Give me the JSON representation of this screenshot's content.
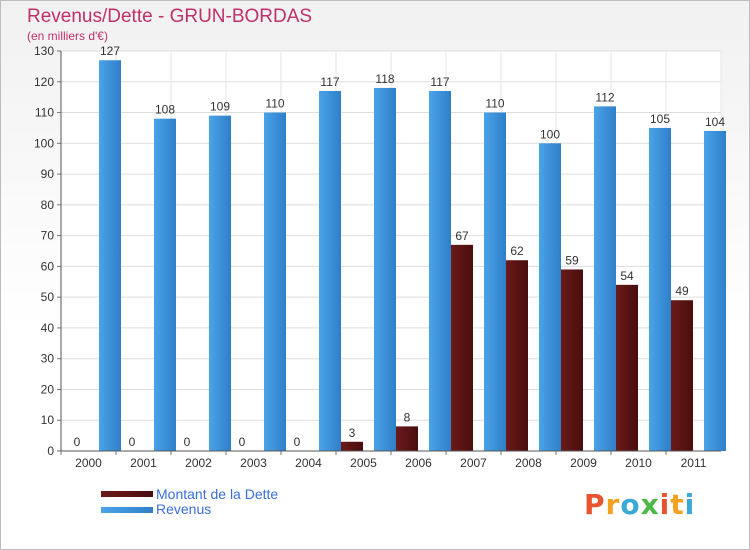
{
  "chart_data": {
    "type": "bar",
    "title": "Revenus/Dette - GRUN-BORDAS",
    "subtitle": "(en milliers d'€)",
    "categories": [
      "2000",
      "2001",
      "2002",
      "2003",
      "2004",
      "2005",
      "2006",
      "2007",
      "2008",
      "2009",
      "2010",
      "2011"
    ],
    "series": [
      {
        "name": "Montant de la Dette",
        "color": "#6b1a1a",
        "values": [
          0,
          0,
          0,
          0,
          0,
          3,
          8,
          67,
          62,
          59,
          54,
          49
        ]
      },
      {
        "name": "Revenus",
        "color": "#4aa3e8",
        "values": [
          127,
          108,
          109,
          110,
          117,
          118,
          117,
          110,
          100,
          112,
          105,
          104
        ]
      }
    ],
    "ylim": [
      0,
      130
    ],
    "yticks": [
      0,
      10,
      20,
      30,
      40,
      50,
      60,
      70,
      80,
      90,
      100,
      110,
      120,
      130
    ],
    "grid": true,
    "legend_position": "bottom-left"
  },
  "branding": {
    "logo_letters": [
      "P",
      "r",
      "o",
      "x",
      "i",
      "t",
      "i"
    ],
    "logo_colors": [
      "#e8542e",
      "#f4a020",
      "#3aa9d6",
      "#4db848",
      "#e8542e",
      "#f4a020",
      "#3aa9d6"
    ]
  }
}
